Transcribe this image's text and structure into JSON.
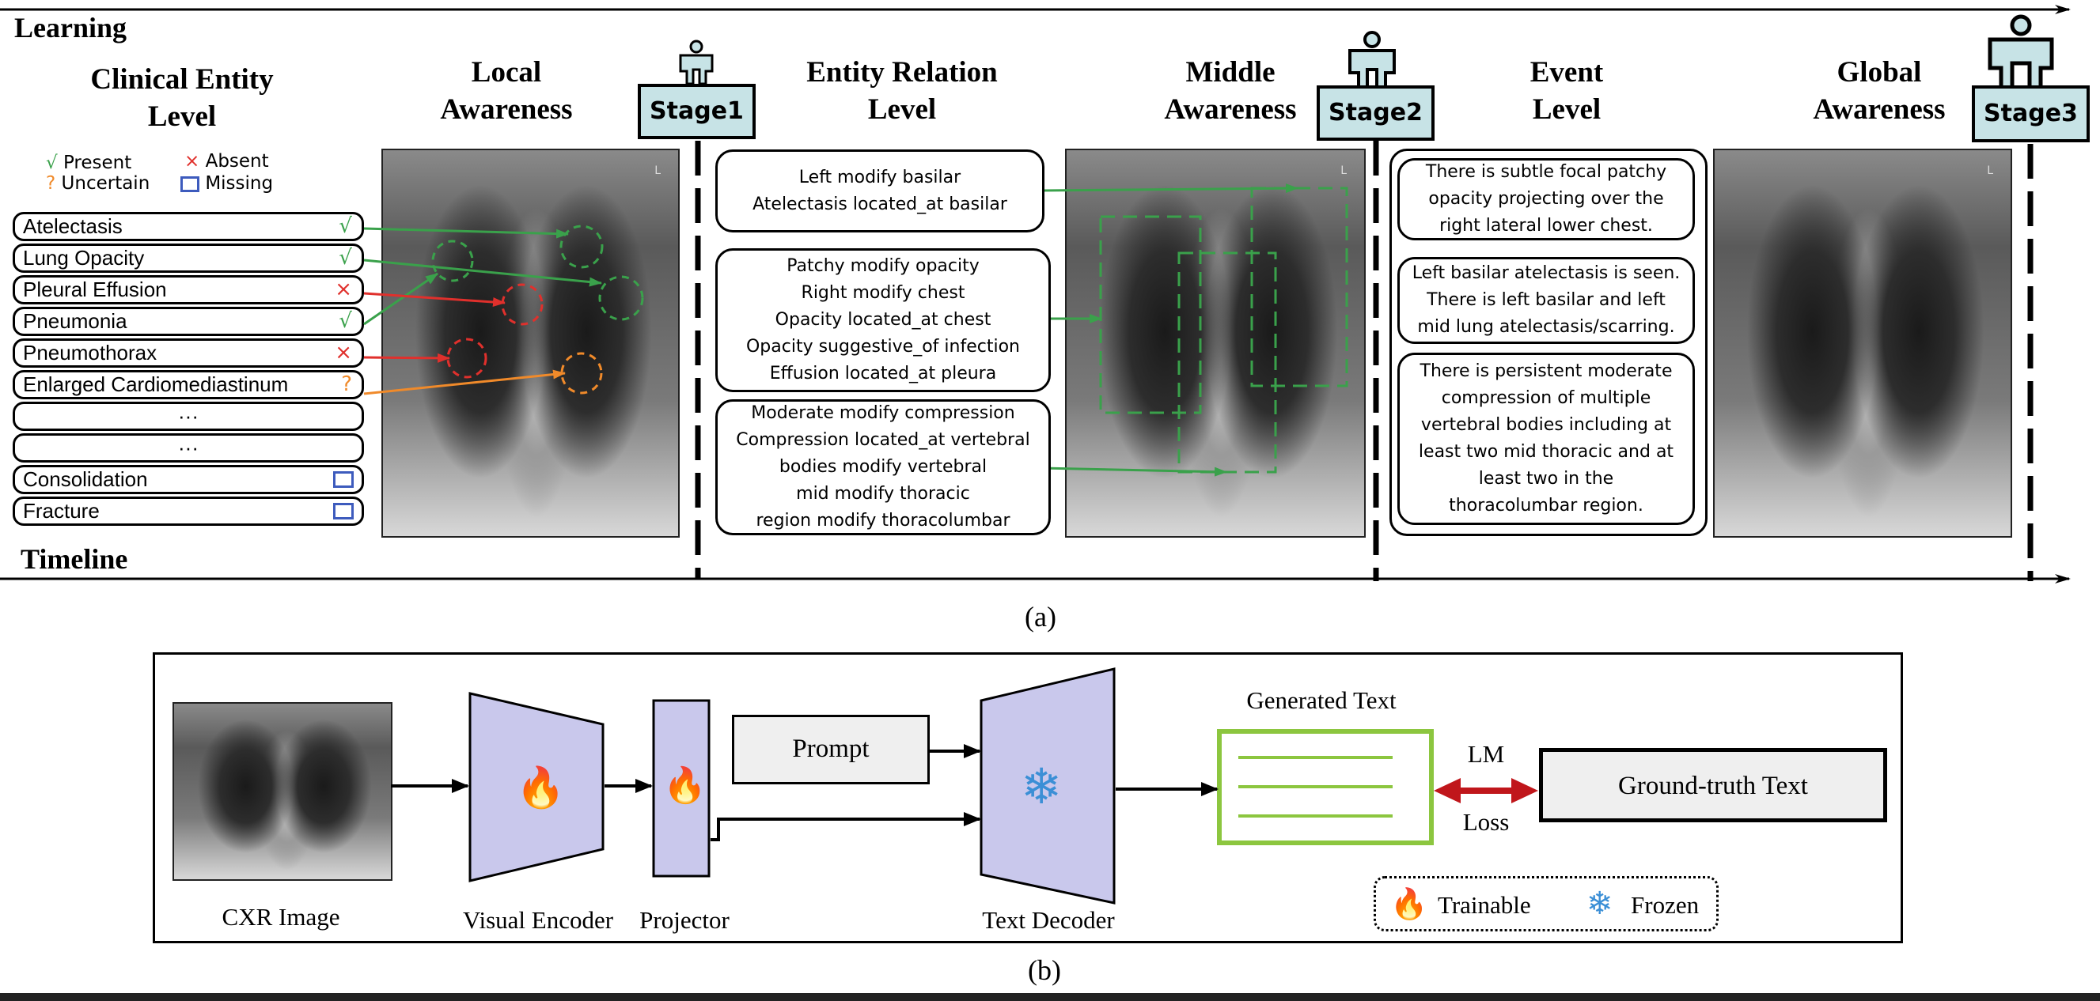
{
  "panel_a": {
    "learning_label": "Learning",
    "timeline_label": "Timeline",
    "caption": "(a)",
    "stages": [
      {
        "header": [
          "Clinical Entity",
          "Level"
        ]
      },
      {
        "header": [
          "Local",
          "Awareness"
        ],
        "badge": "Stage1"
      },
      {
        "header": [
          "Entity Relation",
          "Level"
        ]
      },
      {
        "header": [
          "Middle",
          "Awareness"
        ],
        "badge": "Stage2"
      },
      {
        "header": [
          "Event",
          "Level"
        ]
      },
      {
        "header": [
          "Global",
          "Awareness"
        ],
        "badge": "Stage3"
      }
    ],
    "legend": {
      "present": "Present",
      "absent": "Absent",
      "uncertain": "Uncertain",
      "missing": "Missing",
      "present_color": "#3aa14b",
      "absent_color": "#e0302c",
      "uncertain_color": "#f08a2a",
      "missing_color": "#3d5bbd"
    },
    "entities": [
      {
        "label": "Atelectasis",
        "status": "present",
        "symbol": "√"
      },
      {
        "label": "Lung Opacity",
        "status": "present",
        "symbol": "√"
      },
      {
        "label": "Pleural Effusion",
        "status": "absent",
        "symbol": "×"
      },
      {
        "label": "Pneumonia",
        "status": "present",
        "symbol": "√"
      },
      {
        "label": "Pneumothorax",
        "status": "absent",
        "symbol": "×"
      },
      {
        "label": "Enlarged Cardiomediastinum",
        "status": "uncertain",
        "symbol": "?"
      },
      {
        "label": "···",
        "status": "none",
        "symbol": ""
      },
      {
        "label": "···",
        "status": "none",
        "symbol": ""
      },
      {
        "label": "Consolidation",
        "status": "missing",
        "symbol": ""
      },
      {
        "label": "Fracture",
        "status": "missing",
        "symbol": ""
      }
    ],
    "relations": [
      [
        "Left modify basilar",
        "Atelectasis located_at basilar"
      ],
      [
        "Patchy modify opacity",
        "Right modify chest",
        "Opacity located_at chest",
        "Opacity suggestive_of infection",
        "Effusion located_at pleura"
      ],
      [
        "Moderate modify compression",
        "Compression located_at vertebral",
        "bodies modify vertebral",
        "mid modify thoracic",
        "region modify thoracolumbar"
      ]
    ],
    "events": [
      [
        "There is subtle focal patchy",
        "opacity projecting over the",
        "right lateral lower chest."
      ],
      [
        "Left basilar atelectasis is seen.",
        "There is left basilar and left",
        "mid lung atelectasis/scarring."
      ],
      [
        "There is persistent moderate",
        "compression of multiple",
        "vertebral bodies including at",
        "least two mid thoracic and at",
        "least two in the",
        "thoracolumbar region."
      ]
    ],
    "xray_marker": "L"
  },
  "panel_b": {
    "caption": "(b)",
    "cxr_label": "CXR Image",
    "visual_encoder_label": "Visual Encoder",
    "projector_label": "Projector",
    "prompt_label": "Prompt",
    "text_decoder_label": "Text Decoder",
    "generated_text_label": "Generated Text",
    "loss_label_top": "LM",
    "loss_label_bottom": "Loss",
    "ground_truth_label": "Ground-truth Text",
    "legend_trainable": "Trainable",
    "legend_frozen": "Frozen",
    "fire_icon": "🔥",
    "snow_icon": "❄",
    "colors": {
      "module": "#c9c8ec",
      "generated_border": "#8cc63f",
      "loss_arrow": "#c0161b",
      "snow": "#3b8fd6"
    }
  }
}
